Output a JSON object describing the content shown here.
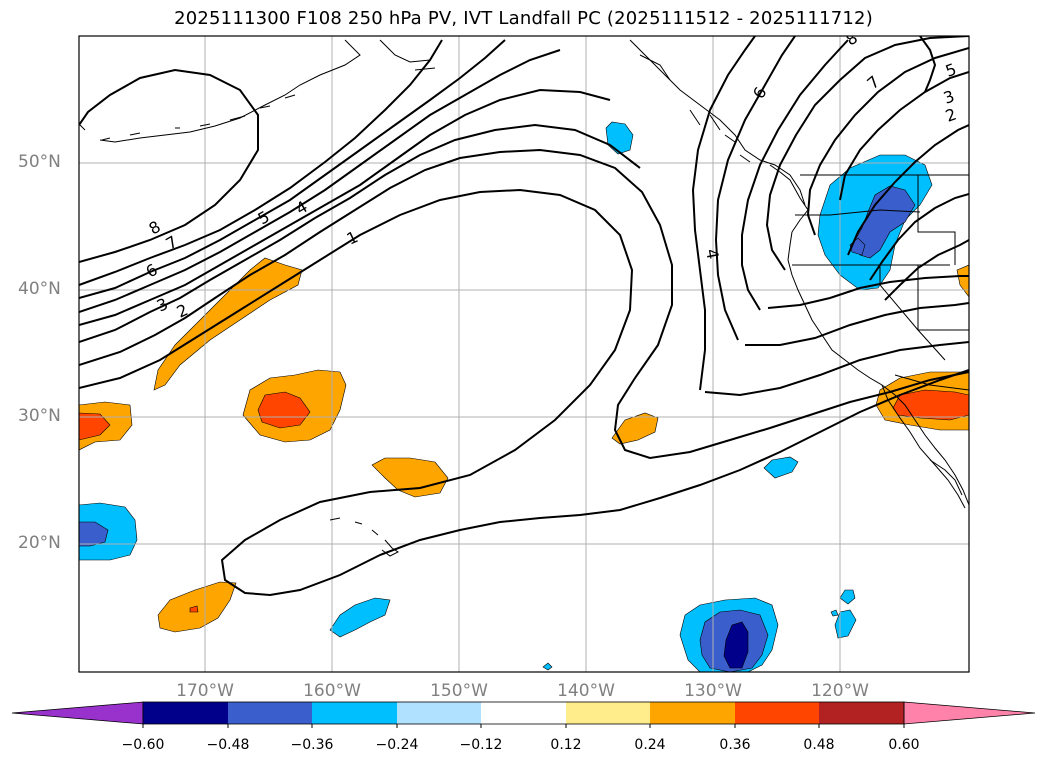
{
  "title": "2025111300 F108 250 hPa PV, IVT Landfall PC (2025111512 - 2025111712)",
  "map": {
    "lat_labels": [
      "50°N",
      "40°N",
      "30°N",
      "20°N"
    ],
    "lon_labels": [
      "170°W",
      "160°W",
      "150°W",
      "140°W",
      "130°W",
      "120°W"
    ],
    "contour_labels": [
      "8",
      "7",
      "6",
      "3",
      "2",
      "5",
      "4",
      "1",
      "4",
      "6",
      "7",
      "8",
      "5",
      "3",
      "2"
    ],
    "pv_contour_levels": [
      1,
      2,
      3,
      4,
      5,
      6,
      7,
      8
    ],
    "grid": true,
    "line_color": "#000000",
    "grid_color": "#b0b0b0"
  },
  "colorbar": {
    "tick_labels": [
      "−0.60",
      "−0.48",
      "−0.36",
      "−0.24",
      "−0.12",
      "0.12",
      "0.24",
      "0.36",
      "0.48",
      "0.60"
    ],
    "colors": [
      "#9932cc",
      "#00008b",
      "#3a5fcd",
      "#00bfff",
      "#b0e2ff",
      "#ffffff",
      "#ffec8b",
      "#ffa500",
      "#ff4500",
      "#b22222",
      "#ff82ab"
    ],
    "extend": "both"
  }
}
